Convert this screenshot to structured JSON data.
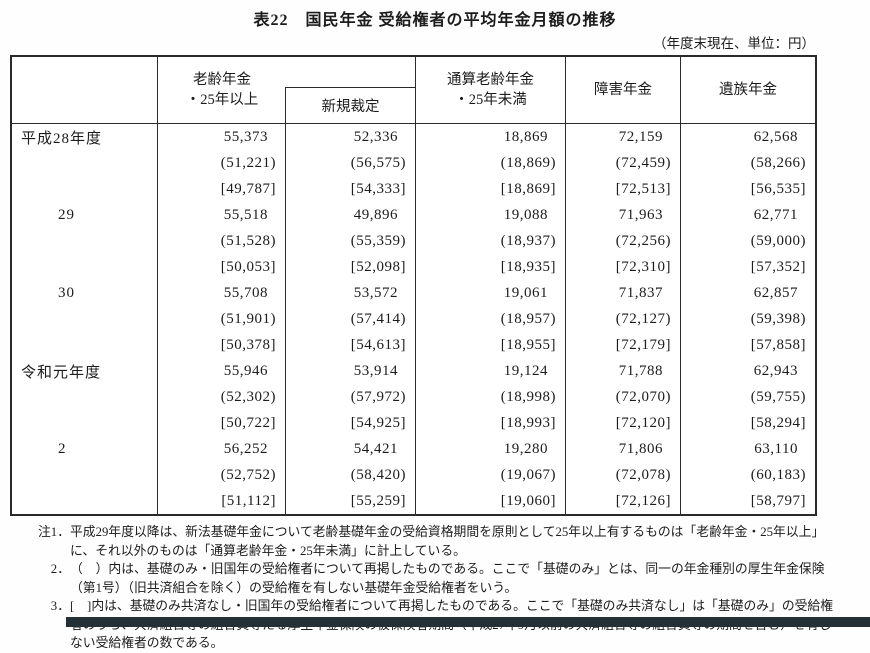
{
  "title": "表22　国民年金 受給権者の平均年金月額の推移",
  "unit_note": "（年度末現在、単位：円）",
  "colors": {
    "border": "#2a2a2a",
    "text": "#1c1c1c",
    "bottom_bar": "#233036"
  },
  "table": {
    "headers": {
      "oldage_line1": "老齢年金",
      "oldage_line2": "・25年以上",
      "shinki": "新規裁定",
      "tsusan_line1": "通算老齢年金",
      "tsusan_line2": "・25年未満",
      "disability": "障害年金",
      "survivor": "遺族年金"
    },
    "groups": [
      {
        "label": "平成28年度",
        "rows": [
          [
            "55,373",
            "52,336",
            "18,869",
            "72,159",
            "62,568"
          ],
          [
            "(51,221)",
            "(56,575)",
            "(18,869)",
            "(72,459)",
            "(58,266)"
          ],
          [
            "[49,787]",
            "[54,333]",
            "[18,869]",
            "[72,513]",
            "[56,535]"
          ]
        ]
      },
      {
        "label": "29",
        "rows": [
          [
            "55,518",
            "49,896",
            "19,088",
            "71,963",
            "62,771"
          ],
          [
            "(51,528)",
            "(55,359)",
            "(18,937)",
            "(72,256)",
            "(59,000)"
          ],
          [
            "[50,053]",
            "[52,098]",
            "[18,935]",
            "[72,310]",
            "[57,352]"
          ]
        ]
      },
      {
        "label": "30",
        "rows": [
          [
            "55,708",
            "53,572",
            "19,061",
            "71,837",
            "62,857"
          ],
          [
            "(51,901)",
            "(57,414)",
            "(18,957)",
            "(72,127)",
            "(59,398)"
          ],
          [
            "[50,378]",
            "[54,613]",
            "[18,955]",
            "[72,179]",
            "[57,858]"
          ]
        ]
      },
      {
        "label": "令和元年度",
        "rows": [
          [
            "55,946",
            "53,914",
            "19,124",
            "71,788",
            "62,943"
          ],
          [
            "(52,302)",
            "(57,972)",
            "(18,998)",
            "(72,070)",
            "(59,755)"
          ],
          [
            "[50,722]",
            "[54,925]",
            "[18,993]",
            "[72,120]",
            "[58,294]"
          ]
        ]
      },
      {
        "label": "2",
        "rows": [
          [
            "56,252",
            "54,421",
            "19,280",
            "71,806",
            "63,110"
          ],
          [
            "(52,752)",
            "(58,420)",
            "(19,067)",
            "(72,078)",
            "(60,183)"
          ],
          [
            "[51,112]",
            "[55,259]",
            "[19,060]",
            "[72,126]",
            "[58,797]"
          ]
        ]
      }
    ]
  },
  "notes": [
    {
      "label": "注1．",
      "text": "平成29年度以降は、新法基礎年金について老齢基礎年金の受給資格期間を原則として25年以上有するものは「老齢年金・25年以上」に、それ以外のものは「通算老齢年金・25年未満」に計上している。"
    },
    {
      "label": "2．",
      "text": "（　）内は、基礎のみ・旧国年の受給権者について再掲したものである。ここで「基礎のみ」とは、同一の年金種別の厚生年金保険（第1号）（旧共済組合を除く）の受給権を有しない基礎年金受給権者をいう。"
    },
    {
      "label": "3．",
      "text": "[　]内は、基礎のみ共済なし・旧国年の受給権者について再掲したものである。ここで「基礎のみ共済なし」は「基礎のみ」の受給権者のうち、共済組合等の組合員等たる厚生年金保険の被保険者期間（平成27年9月以前の共済組合等の組合員等の期間を含む）を有しない受給権者の数である。"
    }
  ]
}
